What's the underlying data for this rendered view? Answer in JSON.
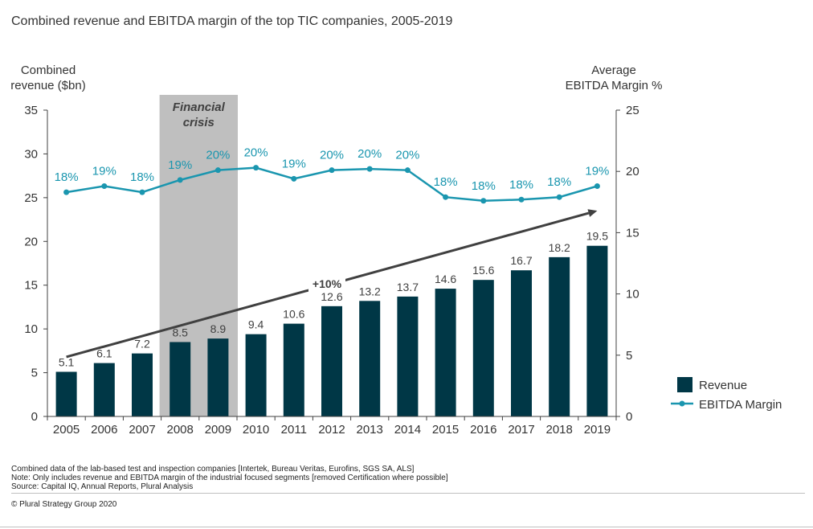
{
  "title": "Combined revenue and EBITDA margin of the top TIC companies, 2005-2019",
  "left_axis_title": [
    "Combined",
    "revenue ($bn)"
  ],
  "right_axis_title": [
    "Average",
    "EBITDA Margin %"
  ],
  "annotations": {
    "crisis": [
      "Financial",
      "crisis"
    ],
    "growth": "+10%"
  },
  "legend": [
    {
      "label": "Revenue",
      "color": "#003746",
      "icon": "bar-swatch"
    },
    {
      "label": "EBITDA Margin",
      "color": "#1A96AF",
      "icon": "line-marker"
    }
  ],
  "footnotes": [
    "Combined data of the lab-based test and inspection companies [Intertek, Bureau Veritas, Eurofins, SGS SA, ALS]",
    "Note: Only includes revenue and EBITDA margin of the industrial focused segments [removed Certification where possible]",
    "Source: Capital IQ, Annual Reports, Plural Analysis"
  ],
  "copyright": "© Plural Strategy Group 2020",
  "colors": {
    "bar": "#003746",
    "line": "#1A96AF",
    "crisis_band": "#BFBFBF",
    "arrow": "#404040"
  },
  "chart_data": {
    "type": "bar",
    "title": "Combined revenue and EBITDA margin of the top TIC companies, 2005-2019",
    "categories": [
      "2005",
      "2006",
      "2007",
      "2008",
      "2009",
      "2010",
      "2011",
      "2012",
      "2013",
      "2014",
      "2015",
      "2016",
      "2017",
      "2018",
      "2019"
    ],
    "series": [
      {
        "name": "Revenue",
        "type": "bar",
        "axis": "left",
        "values": [
          5.1,
          6.1,
          7.2,
          8.5,
          8.9,
          9.4,
          10.6,
          12.6,
          13.2,
          13.7,
          14.6,
          15.6,
          16.7,
          18.2,
          19.5
        ],
        "labels": [
          "5.1",
          "6.1",
          "7.2",
          "8.5",
          "8.9",
          "9.4",
          "10.6",
          "12.6",
          "13.2",
          "13.7",
          "14.6",
          "15.6",
          "16.7",
          "18.2",
          "19.5"
        ]
      },
      {
        "name": "EBITDA Margin",
        "type": "line",
        "axis": "right",
        "values": [
          18.3,
          18.8,
          18.3,
          19.3,
          20.1,
          20.3,
          19.4,
          20.1,
          20.2,
          20.1,
          17.9,
          17.6,
          17.7,
          17.9,
          18.8
        ],
        "labels": [
          "18%",
          "19%",
          "18%",
          "19%",
          "20%",
          "20%",
          "19%",
          "20%",
          "20%",
          "20%",
          "18%",
          "18%",
          "18%",
          "18%",
          "19%"
        ]
      }
    ],
    "left_axis": {
      "ylim": [
        0,
        35
      ],
      "ticks": [
        "0",
        "5",
        "10",
        "15",
        "20",
        "25",
        "30",
        "35"
      ]
    },
    "right_axis": {
      "ylim": [
        0,
        25
      ],
      "ticks": [
        "0",
        "5",
        "10",
        "15",
        "20",
        "25"
      ]
    },
    "highlight_band": {
      "from": "2008",
      "to": "2009",
      "label": "Financial crisis"
    },
    "trend_arrow": {
      "label": "+10%",
      "from": {
        "x": "2005",
        "y": 6.8
      },
      "to": {
        "x": "2019",
        "y": 23.5
      }
    },
    "legend_position": "right",
    "grid": false
  }
}
